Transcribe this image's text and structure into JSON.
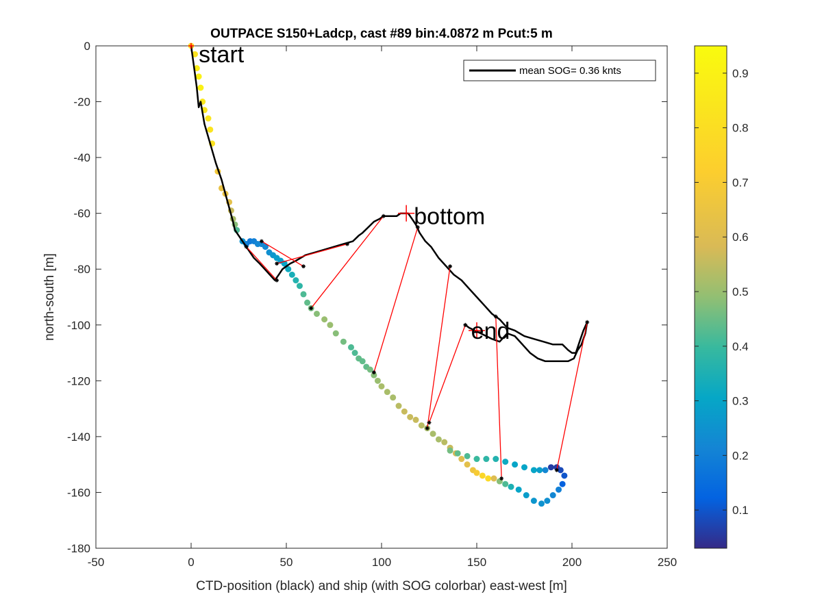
{
  "chart_data": {
    "type": "scatter",
    "title": "OUTPACE S150+Ladcp, cast #89 bin:4.0872 m  Pcut:5 m",
    "xlabel": "CTD-position (black) and ship (with SOG colorbar) east-west [m]",
    "ylabel": "north-south [m]",
    "xlim": [
      -50,
      250
    ],
    "ylim": [
      -180,
      0
    ],
    "xticks": [
      -50,
      0,
      50,
      100,
      150,
      200,
      250
    ],
    "yticks": [
      -180,
      -160,
      -140,
      -120,
      -100,
      -80,
      -60,
      -40,
      -20,
      0
    ],
    "xtick_labels": [
      "-50",
      "0",
      "50",
      "100",
      "150",
      "200",
      "250"
    ],
    "ytick_labels": [
      "-180",
      "-160",
      "-140",
      "-120",
      "-100",
      "-80",
      "-60",
      "-40",
      "-20",
      "0"
    ],
    "legend": {
      "label": "mean SOG=  0.36 knts",
      "position": "top-right"
    },
    "colorbar": {
      "min": 0.03,
      "max": 0.95,
      "ticks": [
        0.1,
        0.2,
        0.3,
        0.4,
        0.5,
        0.6,
        0.7,
        0.8,
        0.9
      ],
      "tick_labels": [
        "0.1",
        "0.2",
        "0.3",
        "0.4",
        "0.5",
        "0.6",
        "0.7",
        "0.8",
        "0.9"
      ]
    },
    "annotations": [
      {
        "text": "start",
        "x": 4,
        "y": -3
      },
      {
        "text": "bottom",
        "x": 117,
        "y": -61
      },
      {
        "text": "end",
        "x": 147,
        "y": -102
      }
    ],
    "markers": [
      {
        "name": "start",
        "x": 0,
        "y": 0
      },
      {
        "name": "bottom",
        "x": 113,
        "y": -60
      },
      {
        "name": "end",
        "x": 150,
        "y": -102
      }
    ],
    "ctd_track": [
      [
        0,
        0
      ],
      [
        1,
        -5
      ],
      [
        2,
        -10
      ],
      [
        3,
        -15
      ],
      [
        4,
        -22
      ],
      [
        5,
        -20
      ],
      [
        7,
        -28
      ],
      [
        10,
        -35
      ],
      [
        13,
        -42
      ],
      [
        16,
        -48
      ],
      [
        18,
        -53
      ],
      [
        20,
        -58
      ],
      [
        22,
        -63
      ],
      [
        23,
        -66
      ],
      [
        25,
        -68
      ],
      [
        28,
        -71
      ],
      [
        30,
        -73
      ],
      [
        33,
        -76
      ],
      [
        36,
        -78
      ],
      [
        40,
        -81
      ],
      [
        44,
        -84
      ],
      [
        46,
        -82
      ],
      [
        48,
        -80
      ],
      [
        52,
        -78
      ],
      [
        55,
        -77
      ],
      [
        60,
        -75
      ],
      [
        65,
        -74
      ],
      [
        70,
        -73
      ],
      [
        75,
        -72
      ],
      [
        80,
        -71
      ],
      [
        85,
        -70
      ],
      [
        88,
        -68
      ],
      [
        90,
        -67
      ],
      [
        93,
        -65
      ],
      [
        96,
        -63
      ],
      [
        99,
        -62
      ],
      [
        101,
        -61
      ],
      [
        104,
        -61
      ],
      [
        106,
        -61
      ],
      [
        108,
        -61
      ],
      [
        110,
        -60
      ],
      [
        112,
        -60
      ],
      [
        114,
        -60
      ],
      [
        116,
        -62
      ],
      [
        118,
        -64
      ],
      [
        120,
        -67
      ],
      [
        123,
        -70
      ],
      [
        126,
        -72
      ],
      [
        130,
        -76
      ],
      [
        134,
        -79
      ],
      [
        138,
        -82
      ],
      [
        142,
        -84
      ],
      [
        146,
        -87
      ],
      [
        150,
        -90
      ],
      [
        154,
        -93
      ],
      [
        158,
        -96
      ],
      [
        162,
        -98
      ],
      [
        166,
        -101
      ],
      [
        170,
        -102
      ],
      [
        175,
        -104
      ],
      [
        180,
        -105
      ],
      [
        185,
        -106
      ],
      [
        190,
        -107
      ],
      [
        195,
        -107
      ],
      [
        198,
        -109
      ],
      [
        200,
        -110
      ],
      [
        202,
        -110
      ],
      [
        204,
        -106
      ],
      [
        206,
        -102
      ],
      [
        208,
        -99
      ],
      [
        207,
        -103
      ],
      [
        205,
        -107
      ],
      [
        203,
        -109
      ],
      [
        201,
        -112
      ],
      [
        198,
        -113
      ],
      [
        194,
        -113
      ],
      [
        190,
        -113
      ],
      [
        186,
        -113
      ],
      [
        182,
        -112
      ],
      [
        178,
        -110
      ],
      [
        174,
        -107
      ],
      [
        170,
        -104
      ],
      [
        166,
        -103
      ],
      [
        162,
        -106
      ],
      [
        158,
        -105
      ],
      [
        155,
        -104
      ],
      [
        152,
        -103
      ],
      [
        149,
        -102
      ],
      [
        146,
        -101
      ],
      [
        144,
        -100
      ]
    ],
    "ship_track": [
      [
        0,
        0,
        0.78
      ],
      [
        2,
        -3,
        0.82
      ],
      [
        3,
        -8,
        0.88
      ],
      [
        4,
        -11,
        0.9
      ],
      [
        5,
        -15,
        0.9
      ],
      [
        6,
        -20,
        0.85
      ],
      [
        7,
        -23,
        0.84
      ],
      [
        9,
        -26,
        0.84
      ],
      [
        10,
        -30,
        0.83
      ],
      [
        11,
        -35,
        0.82
      ],
      [
        14,
        -45,
        0.68
      ],
      [
        16,
        -51,
        0.64
      ],
      [
        18,
        -53,
        0.64
      ],
      [
        20,
        -56,
        0.62
      ],
      [
        21,
        -59,
        0.56
      ],
      [
        22,
        -62,
        0.52
      ],
      [
        23,
        -64,
        0.48
      ],
      [
        24,
        -66,
        0.42
      ],
      [
        27,
        -70,
        0.25
      ],
      [
        29,
        -71,
        0.2
      ],
      [
        31,
        -70,
        0.18
      ],
      [
        33,
        -70,
        0.2
      ],
      [
        35,
        -71,
        0.22
      ],
      [
        37,
        -71,
        0.22
      ],
      [
        39,
        -72,
        0.22
      ],
      [
        41,
        -74,
        0.24
      ],
      [
        43,
        -75,
        0.26
      ],
      [
        45,
        -76,
        0.28
      ],
      [
        47,
        -77,
        0.28
      ],
      [
        49,
        -78,
        0.3
      ],
      [
        51,
        -80,
        0.32
      ],
      [
        53,
        -82,
        0.34
      ],
      [
        55,
        -84,
        0.36
      ],
      [
        57,
        -86,
        0.38
      ],
      [
        59,
        -89,
        0.42
      ],
      [
        61,
        -92,
        0.44
      ],
      [
        63,
        -94,
        0.46
      ],
      [
        66,
        -96,
        0.48
      ],
      [
        70,
        -98,
        0.5
      ],
      [
        73,
        -100,
        0.5
      ],
      [
        76,
        -103,
        0.48
      ],
      [
        80,
        -106,
        0.46
      ],
      [
        84,
        -108,
        0.42
      ],
      [
        86,
        -110,
        0.42
      ],
      [
        88,
        -112,
        0.44
      ],
      [
        90,
        -113,
        0.44
      ],
      [
        92,
        -115,
        0.44
      ],
      [
        94,
        -116,
        0.46
      ],
      [
        96,
        -118,
        0.48
      ],
      [
        98,
        -120,
        0.5
      ],
      [
        100,
        -122,
        0.52
      ],
      [
        103,
        -124,
        0.52
      ],
      [
        106,
        -126,
        0.52
      ],
      [
        109,
        -129,
        0.54
      ],
      [
        112,
        -131,
        0.56
      ],
      [
        115,
        -133,
        0.56
      ],
      [
        118,
        -134,
        0.56
      ],
      [
        121,
        -136,
        0.54
      ],
      [
        124,
        -137,
        0.52
      ],
      [
        127,
        -139,
        0.52
      ],
      [
        130,
        -141,
        0.52
      ],
      [
        133,
        -142,
        0.54
      ],
      [
        136,
        -144,
        0.56
      ],
      [
        139,
        -146,
        0.58
      ],
      [
        142,
        -148,
        0.6
      ],
      [
        145,
        -150,
        0.62
      ],
      [
        148,
        -152,
        0.66
      ],
      [
        150,
        -153,
        0.7
      ],
      [
        153,
        -154,
        0.76
      ],
      [
        156,
        -155,
        0.78
      ],
      [
        159,
        -155,
        0.6
      ],
      [
        162,
        -156,
        0.48
      ],
      [
        165,
        -157,
        0.42
      ],
      [
        168,
        -158,
        0.35
      ],
      [
        172,
        -159,
        0.3
      ],
      [
        176,
        -161,
        0.28
      ],
      [
        180,
        -163,
        0.26
      ],
      [
        184,
        -164,
        0.25
      ],
      [
        187,
        -163,
        0.24
      ],
      [
        190,
        -161,
        0.22
      ],
      [
        193,
        -159,
        0.2
      ],
      [
        195,
        -157,
        0.12
      ],
      [
        196,
        -154,
        0.1
      ],
      [
        194,
        -152,
        0.08
      ],
      [
        192,
        -151,
        0.06
      ],
      [
        189,
        -151,
        0.06
      ],
      [
        186,
        -152,
        0.22
      ],
      [
        183,
        -152,
        0.28
      ],
      [
        180,
        -152,
        0.3
      ],
      [
        175,
        -151,
        0.3
      ],
      [
        170,
        -150,
        0.3
      ],
      [
        165,
        -149,
        0.32
      ],
      [
        160,
        -148,
        0.36
      ],
      [
        155,
        -148,
        0.38
      ],
      [
        150,
        -148,
        0.4
      ],
      [
        145,
        -147,
        0.42
      ],
      [
        140,
        -146,
        0.44
      ],
      [
        136,
        -145,
        0.46
      ]
    ],
    "connectors": [
      [
        [
          0,
          0
        ],
        [
          0,
          0
        ]
      ],
      [
        [
          29,
          -72
        ],
        [
          45,
          -84
        ]
      ],
      [
        [
          37,
          -70
        ],
        [
          59,
          -79
        ]
      ],
      [
        [
          45,
          -78
        ],
        [
          82,
          -71
        ]
      ],
      [
        [
          63,
          -94
        ],
        [
          101,
          -61
        ]
      ],
      [
        [
          96,
          -117
        ],
        [
          119,
          -65
        ]
      ],
      [
        [
          124,
          -137
        ],
        [
          136,
          -79
        ]
      ],
      [
        [
          125,
          -135
        ],
        [
          144,
          -100
        ]
      ],
      [
        [
          163,
          -155
        ],
        [
          160,
          -97
        ]
      ],
      [
        [
          192,
          -152
        ],
        [
          208,
          -99
        ]
      ]
    ],
    "connector_ends": [
      [
        29,
        -72
      ],
      [
        45,
        -84
      ],
      [
        37,
        -70
      ],
      [
        59,
        -79
      ],
      [
        45,
        -78
      ],
      [
        82,
        -71
      ],
      [
        63,
        -94
      ],
      [
        101,
        -61
      ],
      [
        96,
        -117
      ],
      [
        119,
        -65
      ],
      [
        124,
        -137
      ],
      [
        136,
        -79
      ],
      [
        125,
        -135
      ],
      [
        144,
        -100
      ],
      [
        163,
        -155
      ],
      [
        160,
        -97
      ],
      [
        192,
        -152
      ],
      [
        208,
        -99
      ]
    ]
  }
}
